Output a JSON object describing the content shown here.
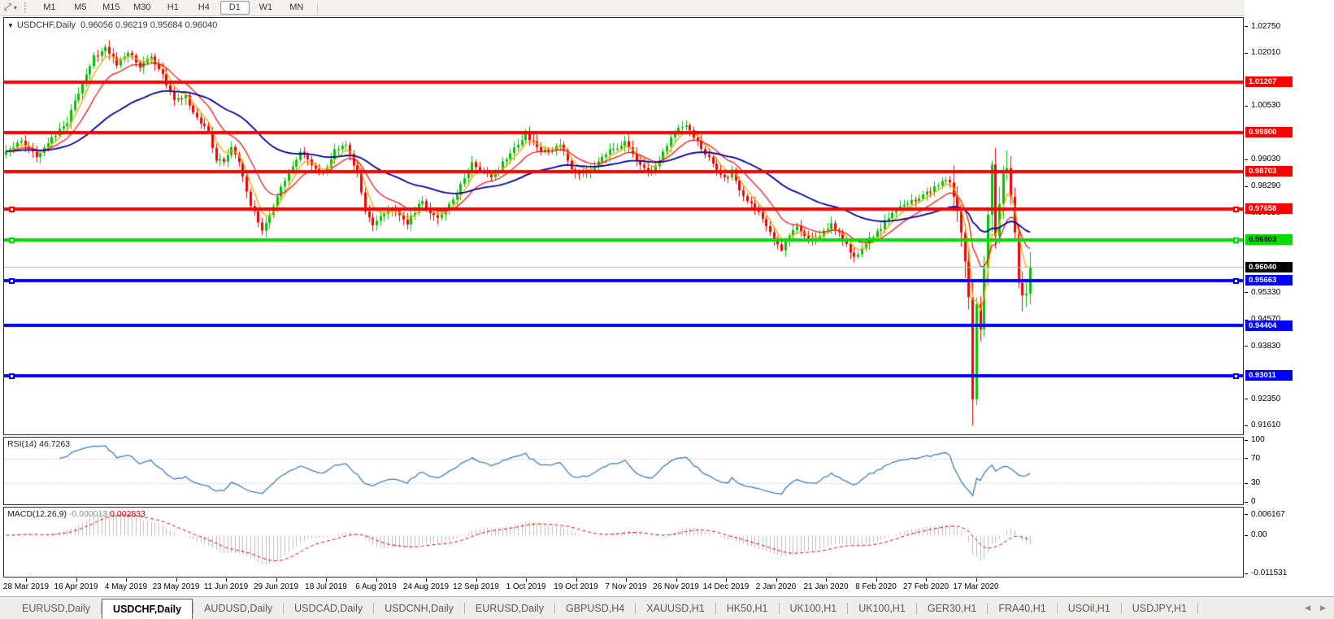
{
  "toolbar": {
    "pointer_tool": "crosshair",
    "timeframes": [
      "M1",
      "M5",
      "M15",
      "M30",
      "H1",
      "H4",
      "D1",
      "W1",
      "MN"
    ],
    "active_timeframe": "D1"
  },
  "chart": {
    "symbol": "USDCHF,Daily",
    "ohlc": "0.96056 0.96219 0.95684 0.96040"
  },
  "price_axis": {
    "max": 1.0299,
    "min": 0.9137,
    "tick_labels": [
      "1.02750",
      "1.02010",
      "1.00530",
      "0.99030",
      "0.98290",
      "0.97550",
      "0.95330",
      "0.94570",
      "0.93830",
      "0.92350",
      "0.91610"
    ]
  },
  "lines": [
    {
      "price": 1.01207,
      "label": "1.01207",
      "color": "#FE0000",
      "text_color": "#FFFFFF",
      "width": 4,
      "handles": false
    },
    {
      "price": 0.998,
      "label": "0.99800",
      "color": "#FE0000",
      "text_color": "#FFFFFF",
      "width": 4,
      "handles": false
    },
    {
      "price": 0.98703,
      "label": "0.98703",
      "color": "#FE0000",
      "text_color": "#FFFFFF",
      "width": 4,
      "handles": false
    },
    {
      "price": 0.97658,
      "label": "0.97658",
      "color": "#FE0000",
      "text_color": "#FFFFFF",
      "width": 4,
      "handles": true
    },
    {
      "price": 0.96803,
      "label": "0.96803",
      "color": "#00DE00",
      "text_color": "#000000",
      "width": 4,
      "handles": true
    },
    {
      "price": 0.95663,
      "label": "0.95663",
      "color": "#0000FE",
      "text_color": "#FFFFFF",
      "width": 4,
      "handles": true
    },
    {
      "price": 0.94404,
      "label": "0.94404",
      "color": "#0000FE",
      "text_color": "#FFFFFF",
      "width": 4,
      "handles": false
    },
    {
      "price": 0.93011,
      "label": "0.93011",
      "color": "#0000FE",
      "text_color": "#FFFFFF",
      "width": 4,
      "handles": true
    }
  ],
  "current_price": {
    "value": "0.96040",
    "price": 0.9604,
    "box_bg": "#000000",
    "text_color": "#FFFFFF",
    "line_color": "#b6b6b6"
  },
  "rsi": {
    "name": "RSI(14)",
    "value": "46.7263",
    "period": 14,
    "line_color": "#3C7EBF",
    "levels": [
      100,
      70,
      30,
      0
    ],
    "level_labels": [
      "100",
      "70",
      "30",
      "0"
    ],
    "dashed_levels": [
      70,
      30
    ]
  },
  "macd": {
    "name": "MACD(12,26,9)",
    "main_value": "-0.000013",
    "signal_value": "0.002833",
    "fast": 12,
    "slow": 26,
    "signal": 9,
    "hist_color": "#bdbdbd",
    "signal_color": "#e00000",
    "scale_labels": [
      "0.006167",
      "0.00",
      "-0.011531"
    ],
    "scale_values": [
      0.006167,
      0.0,
      -0.011531
    ]
  },
  "date_axis": {
    "labels": [
      "28 Mar 2019",
      "16 Apr 2019",
      "4 May 2019",
      "23 May 2019",
      "11 Jun 2019",
      "29 Jun 2019",
      "18 Jul 2019",
      "6 Aug 2019",
      "24 Aug 2019",
      "12 Sep 2019",
      "1 Oct 2019",
      "19 Oct 2019",
      "7 Nov 2019",
      "26 Nov 2019",
      "14 Dec 2019",
      "2 Jan 2020",
      "21 Jan 2020",
      "8 Feb 2020",
      "27 Feb 2020",
      "17 Mar 2020"
    ]
  },
  "tabs": {
    "items": [
      "EURUSD,Daily",
      "USDCHF,Daily",
      "AUDUSD,Daily",
      "USDCAD,Daily",
      "USDCNH,Daily",
      "EURUSD,Daily",
      "GBPUSD,H4",
      "XAUUSD,H1",
      "HK50,H1",
      "UK100,H1",
      "UK100,H1",
      "GER30,H1",
      "FRA40,H1",
      "USOil,H1",
      "USDJPY,H1"
    ],
    "active_index": 1,
    "nav_left": "◀",
    "nav_right": "▶"
  },
  "chart_data": {
    "type": "candlestick",
    "symbol": "USDCHF",
    "timeframe": "Daily",
    "bars": 269,
    "up_color": "#00C400",
    "down_color": "#F40000",
    "price_range": [
      0.9137,
      1.0299
    ],
    "moving_averages": [
      {
        "period": 5,
        "color": "#FFA500",
        "width": 1.4,
        "dash": []
      },
      {
        "period": 13,
        "color": "#FF0000",
        "width": 1.2,
        "dash": []
      },
      {
        "period": 45,
        "color": "#0000A0",
        "width": 1.8,
        "dash": []
      }
    ],
    "close_anchors": [
      [
        0,
        0.993
      ],
      [
        4,
        0.995
      ],
      [
        8,
        0.9915
      ],
      [
        12,
        0.9965
      ],
      [
        16,
        1.001
      ],
      [
        20,
        1.012
      ],
      [
        23,
        1.019
      ],
      [
        26,
        1.0215
      ],
      [
        29,
        1.017
      ],
      [
        32,
        1.0205
      ],
      [
        35,
        1.016
      ],
      [
        38,
        1.019
      ],
      [
        41,
        1.014
      ],
      [
        44,
        1.007
      ],
      [
        47,
        1.008
      ],
      [
        50,
        1.002
      ],
      [
        53,
        0.998
      ],
      [
        55,
        0.9905
      ],
      [
        57,
        0.99
      ],
      [
        59,
        0.994
      ],
      [
        61,
        0.989
      ],
      [
        64,
        0.978
      ],
      [
        67,
        0.971
      ],
      [
        70,
        0.977
      ],
      [
        73,
        0.985
      ],
      [
        77,
        0.9925
      ],
      [
        80,
        0.989
      ],
      [
        83,
        0.986
      ],
      [
        86,
        0.993
      ],
      [
        89,
        0.994
      ],
      [
        92,
        0.987
      ],
      [
        94,
        0.976
      ],
      [
        96,
        0.972
      ],
      [
        99,
        0.975
      ],
      [
        101,
        0.977
      ],
      [
        103,
        0.9745
      ],
      [
        105,
        0.9725
      ],
      [
        107,
        0.976
      ],
      [
        109,
        0.979
      ],
      [
        111,
        0.976
      ],
      [
        113,
        0.9735
      ],
      [
        116,
        0.9775
      ],
      [
        119,
        0.983
      ],
      [
        122,
        0.989
      ],
      [
        125,
        0.987
      ],
      [
        127,
        0.9855
      ],
      [
        129,
        0.988
      ],
      [
        131,
        0.9905
      ],
      [
        134,
        0.995
      ],
      [
        136,
        0.9975
      ],
      [
        138,
        0.995
      ],
      [
        140,
        0.992
      ],
      [
        143,
        0.9935
      ],
      [
        145,
        0.995
      ],
      [
        147,
        0.99
      ],
      [
        149,
        0.9865
      ],
      [
        152,
        0.987
      ],
      [
        154,
        0.988
      ],
      [
        156,
        0.991
      ],
      [
        158,
        0.993
      ],
      [
        160,
        0.994
      ],
      [
        162,
        0.995
      ],
      [
        164,
        0.992
      ],
      [
        166,
        0.989
      ],
      [
        168,
        0.987
      ],
      [
        170,
        0.988
      ],
      [
        172,
        0.993
      ],
      [
        175,
        0.998
      ],
      [
        178,
        1.0
      ],
      [
        180,
        0.997
      ],
      [
        183,
        0.992
      ],
      [
        185,
        0.989
      ],
      [
        188,
        0.985
      ],
      [
        190,
        0.987
      ],
      [
        193,
        0.98
      ],
      [
        196,
        0.977
      ],
      [
        198,
        0.974
      ],
      [
        201,
        0.968
      ],
      [
        203,
        0.965
      ],
      [
        205,
        0.969
      ],
      [
        207,
        0.9715
      ],
      [
        209,
        0.9695
      ],
      [
        211,
        0.968
      ],
      [
        214,
        0.97
      ],
      [
        216,
        0.972
      ],
      [
        218,
        0.97
      ],
      [
        220,
        0.9665
      ],
      [
        222,
        0.9635
      ],
      [
        224,
        0.965
      ],
      [
        226,
        0.968
      ],
      [
        228,
        0.97
      ],
      [
        230,
        0.973
      ],
      [
        232,
        0.975
      ],
      [
        234,
        0.977
      ],
      [
        236,
        0.978
      ],
      [
        238,
        0.979
      ],
      [
        240,
        0.981
      ],
      [
        242,
        0.9815
      ],
      [
        244,
        0.983
      ],
      [
        246,
        0.9845
      ],
      [
        247,
        0.984
      ],
      [
        248,
        0.98
      ],
      [
        249,
        0.976
      ],
      [
        250,
        0.97
      ],
      [
        251,
        0.962
      ],
      [
        252,
        0.952
      ],
      [
        253,
        0.9235
      ],
      [
        254,
        0.95
      ],
      [
        255,
        0.943
      ],
      [
        256,
        0.96
      ],
      [
        257,
        0.975
      ],
      [
        258,
        0.989
      ],
      [
        259,
        0.969
      ],
      [
        260,
        0.978
      ],
      [
        261,
        0.987
      ],
      [
        262,
        0.988
      ],
      [
        263,
        0.98
      ],
      [
        264,
        0.97
      ],
      [
        265,
        0.956
      ],
      [
        266,
        0.9525
      ],
      [
        267,
        0.953
      ],
      [
        268,
        0.9604
      ]
    ],
    "forced": {
      "lows": {
        "203": 0.9646,
        "253": 0.9161,
        "266": 0.948
      },
      "highs": {
        "26": 1.0226,
        "258": 0.9901
      },
      "closes": {
        "268": 0.9604
      }
    }
  }
}
